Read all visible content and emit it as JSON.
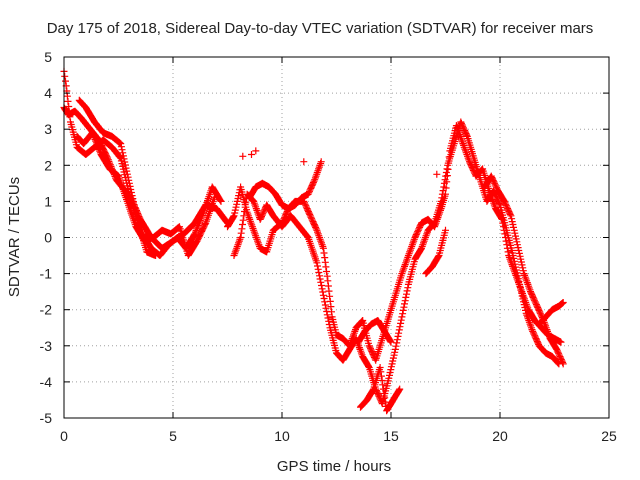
{
  "chart_data": {
    "type": "scatter",
    "title": "Day 175 of 2018, Sidereal Day-to-day VTEC variation (SDTVAR) for receiver mars",
    "xlabel": "GPS time / hours",
    "ylabel": "SDTVAR / TECUs",
    "xlim": [
      0,
      25
    ],
    "ylim": [
      -5,
      5
    ],
    "xticks": [
      0,
      5,
      10,
      15,
      20,
      25
    ],
    "yticks": [
      -5,
      -4,
      -3,
      -2,
      -1,
      0,
      1,
      2,
      3,
      4,
      5
    ],
    "grid": true,
    "marker": "+",
    "series": [
      {
        "name": "SDTVAR",
        "color": "#ff0000",
        "tracks": [
          {
            "x": [
              0.0,
              0.1,
              0.3,
              0.6,
              1.0,
              1.4,
              1.8,
              2.2,
              2.6,
              3.0,
              3.5,
              4.0,
              4.5,
              5.0,
              5.5,
              6.0,
              6.5,
              7.0,
              7.5
            ],
            "y": [
              4.6,
              4.2,
              3.2,
              2.5,
              2.3,
              2.5,
              2.7,
              2.5,
              2.2,
              1.2,
              0.5,
              0.0,
              -0.3,
              -0.1,
              0.1,
              0.4,
              0.9,
              0.8,
              0.4
            ]
          },
          {
            "x": [
              0.0,
              0.2,
              0.5,
              0.8,
              1.2,
              1.6,
              2.0,
              2.4,
              2.8,
              3.2,
              3.6,
              4.0,
              4.4,
              4.8,
              5.2,
              5.6,
              6.0,
              6.4,
              6.8,
              7.2
            ],
            "y": [
              3.6,
              3.4,
              3.5,
              3.3,
              3.0,
              2.7,
              2.2,
              1.6,
              1.3,
              0.8,
              0.1,
              -0.3,
              -0.5,
              -0.2,
              0.0,
              -0.3,
              0.1,
              0.7,
              1.4,
              1.0
            ]
          },
          {
            "x": [
              0.6,
              0.9,
              1.3,
              1.7,
              2.1,
              2.5,
              2.9,
              3.3,
              3.7,
              4.1,
              4.5,
              4.9,
              5.3,
              5.7,
              6.1,
              6.5,
              6.9
            ],
            "y": [
              2.8,
              2.6,
              2.9,
              2.3,
              1.9,
              1.7,
              1.0,
              0.3,
              -0.1,
              0.0,
              0.2,
              0.1,
              0.3,
              -0.5,
              -0.1,
              0.4,
              1.1
            ]
          },
          {
            "x": [
              0.7,
              1.0,
              1.4,
              1.8,
              2.2,
              2.6,
              3.0,
              3.4,
              3.8,
              4.2
            ],
            "y": [
              3.8,
              3.6,
              3.2,
              2.9,
              2.8,
              2.6,
              1.5,
              0.4,
              -0.4,
              -0.5
            ]
          },
          {
            "x": [
              7.5,
              7.8,
              8.1,
              8.4,
              8.7,
              9.0,
              9.3,
              9.6,
              10.0,
              10.3,
              10.6,
              11.0,
              11.3,
              11.6,
              11.9,
              12.1,
              12.3,
              12.5,
              12.8,
              13.1,
              13.4,
              13.7,
              14.0,
              14.3,
              14.6,
              14.9,
              15.2,
              15.5,
              15.8,
              16.1,
              16.4,
              16.7,
              17.0,
              17.3,
              17.5,
              17.7,
              18.0,
              18.3,
              18.6,
              18.9,
              19.2,
              19.5,
              19.8,
              20.1,
              20.4,
              20.7,
              21.0,
              21.3,
              21.6,
              21.9,
              22.2,
              22.5,
              22.8
            ],
            "y": [
              0.3,
              0.6,
              1.4,
              0.7,
              0.2,
              -0.3,
              -0.4,
              0.2,
              0.4,
              0.8,
              1.0,
              1.0,
              0.6,
              0.2,
              -0.3,
              -1.2,
              -2.2,
              -2.7,
              -2.8,
              -3.0,
              -2.5,
              -2.3,
              -3.0,
              -3.4,
              -2.8,
              -2.2,
              -1.6,
              -1.0,
              -0.5,
              0.0,
              0.4,
              0.5,
              0.3,
              0.8,
              1.2,
              2.4,
              3.1,
              2.6,
              2.1,
              1.7,
              1.9,
              1.3,
              0.8,
              0.5,
              -0.5,
              -1.0,
              -1.5,
              -2.0,
              -2.3,
              -2.5,
              -2.7,
              -2.8,
              -2.9
            ]
          },
          {
            "x": [
              7.8,
              8.1,
              8.4,
              8.7,
              9.0,
              9.3,
              9.6,
              10.0,
              10.4,
              10.8,
              11.2,
              11.6,
              11.9,
              12.2,
              12.5,
              12.8,
              13.1,
              13.4,
              13.7,
              14.0,
              14.3,
              14.6,
              14.9,
              15.2,
              15.5,
              15.8,
              16.1,
              16.4,
              16.7,
              17.0,
              17.3,
              17.6,
              17.9,
              18.2,
              18.5,
              18.8,
              19.1,
              19.4,
              19.7,
              20.0,
              20.3,
              20.6,
              20.9,
              21.2,
              21.5,
              21.8,
              22.1,
              22.4,
              22.7
            ],
            "y": [
              -0.5,
              0.0,
              1.2,
              1.0,
              0.5,
              0.9,
              0.6,
              0.3,
              0.6,
              0.3,
              0.0,
              -0.7,
              -1.6,
              -2.5,
              -3.2,
              -3.4,
              -3.1,
              -2.8,
              -3.3,
              -3.6,
              -4.2,
              -4.6,
              -3.9,
              -3.1,
              -2.2,
              -1.3,
              -0.6,
              -0.3,
              0.2,
              0.4,
              1.0,
              2.0,
              2.6,
              3.2,
              2.8,
              2.2,
              1.6,
              1.0,
              1.3,
              0.9,
              0.2,
              -0.5,
              -1.3,
              -2.1,
              -2.6,
              -3.0,
              -3.2,
              -3.3,
              -3.5
            ]
          },
          {
            "x": [
              8.5,
              8.8,
              9.1,
              9.4,
              9.7,
              10.0,
              10.3,
              10.6,
              10.9,
              11.2,
              11.5,
              11.8
            ],
            "y": [
              1.1,
              1.4,
              1.5,
              1.4,
              1.2,
              0.9,
              0.8,
              0.9,
              1.1,
              1.2,
              1.6,
              2.1
            ]
          },
          {
            "x": [
              13.6,
              13.9,
              14.2,
              14.5,
              14.8,
              15.1,
              15.4
            ],
            "y": [
              -4.7,
              -4.5,
              -4.2,
              -3.6,
              -4.8,
              -4.5,
              -4.2
            ]
          },
          {
            "x": [
              16.6,
              16.9,
              17.2,
              17.5
            ],
            "y": [
              -1.0,
              -0.8,
              -0.5,
              0.2
            ]
          },
          {
            "x": [
              21.8,
              22.1,
              22.4,
              22.7,
              22.9
            ],
            "y": [
              -2.4,
              -2.2,
              -2.0,
              -1.9,
              -1.8
            ]
          },
          {
            "x": [
              13.5,
              13.8,
              14.1,
              14.4,
              14.7,
              15.0
            ],
            "y": [
              -2.9,
              -2.6,
              -2.4,
              -2.3,
              -2.6,
              -2.9
            ]
          },
          {
            "x": [
              19.3,
              19.6,
              19.9,
              20.2,
              20.5,
              20.8,
              21.1,
              21.4,
              21.7,
              22.0,
              22.3,
              22.6,
              22.9
            ],
            "y": [
              1.4,
              1.7,
              1.3,
              1.0,
              0.6,
              -0.2,
              -1.0,
              -1.5,
              -1.9,
              -2.3,
              -2.8,
              -3.1,
              -3.5
            ]
          }
        ],
        "isolated_points": [
          {
            "x": 8.6,
            "y": 2.3
          },
          {
            "x": 8.8,
            "y": 2.4
          },
          {
            "x": 8.2,
            "y": 2.25
          },
          {
            "x": 11.0,
            "y": 2.1
          },
          {
            "x": 17.1,
            "y": 1.75
          }
        ]
      }
    ]
  }
}
